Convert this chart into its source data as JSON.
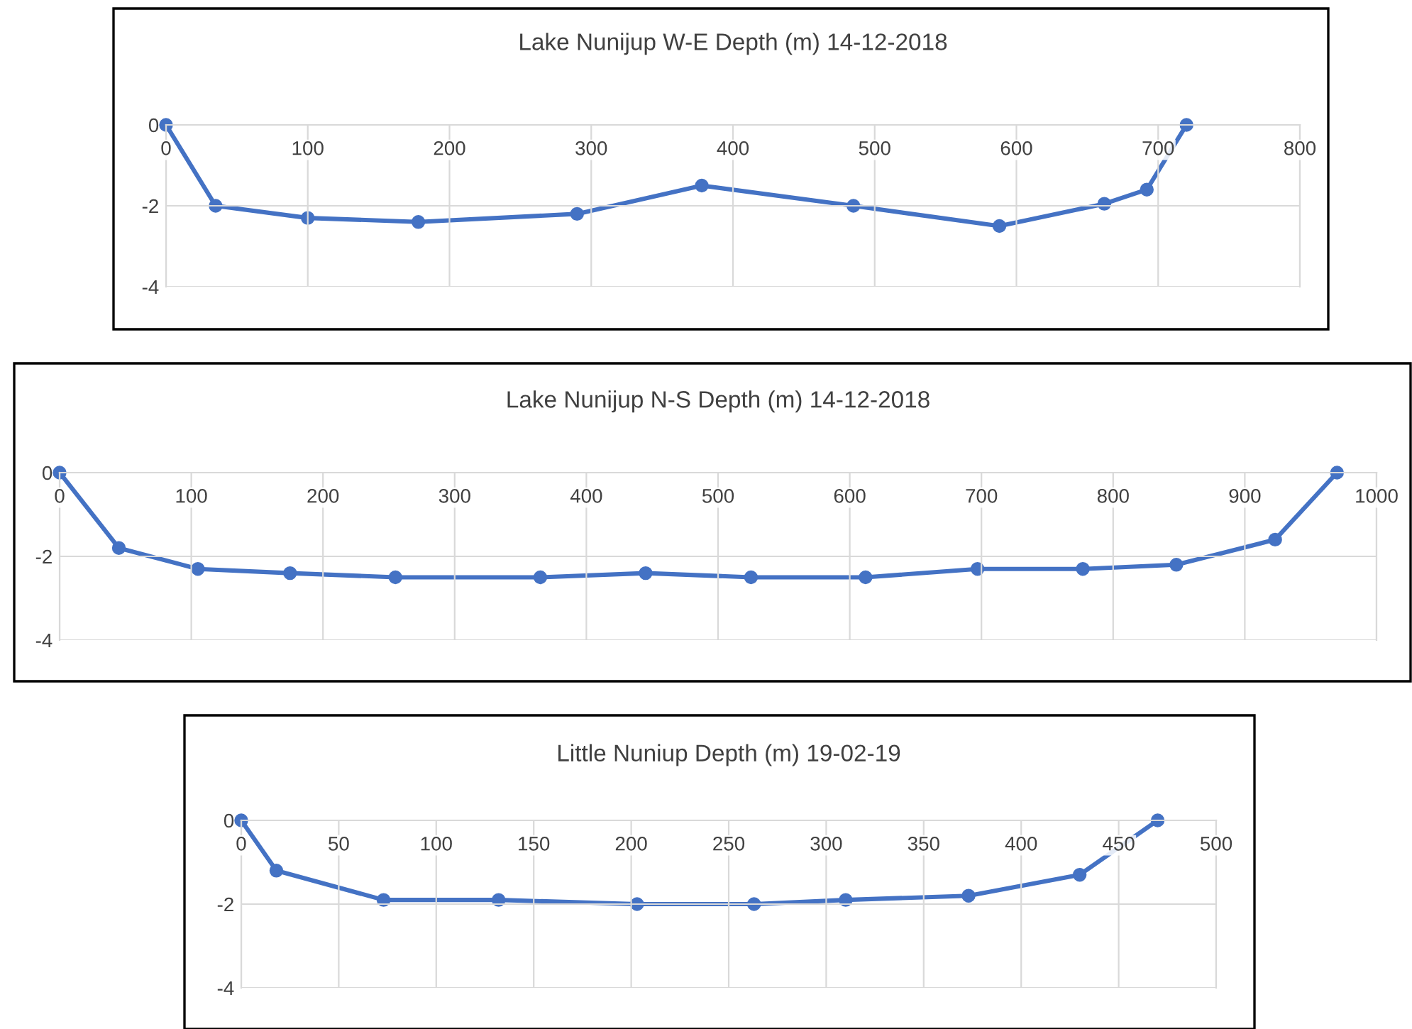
{
  "chart_data": [
    {
      "type": "line",
      "title": "Lake Nunijup W-E Depth (m) 14-12-2018",
      "x": [
        0,
        35,
        100,
        178,
        290,
        378,
        485,
        588,
        662,
        692,
        720
      ],
      "series": [
        {
          "color": "#4472c4",
          "values": [
            0,
            -2.0,
            -2.3,
            -2.4,
            -2.2,
            -1.5,
            -2.0,
            -2.5,
            -1.95,
            -1.6,
            0
          ]
        }
      ],
      "xlim": [
        0,
        800
      ],
      "xticks": [
        0,
        100,
        200,
        300,
        400,
        500,
        600,
        700,
        800
      ],
      "ylim": [
        -4,
        0
      ],
      "yticks": [
        -4,
        -2,
        0
      ],
      "grid": true,
      "marker": "circle",
      "line_style": "solid"
    },
    {
      "type": "line",
      "title": "Lake Nunijup N-S Depth (m) 14-12-2018",
      "x": [
        0,
        45,
        105,
        175,
        255,
        365,
        445,
        525,
        612,
        697,
        777,
        848,
        923,
        970
      ],
      "series": [
        {
          "color": "#4472c4",
          "values": [
            0,
            -1.8,
            -2.3,
            -2.4,
            -2.5,
            -2.5,
            -2.4,
            -2.5,
            -2.5,
            -2.3,
            -2.3,
            -2.2,
            -1.6,
            0
          ]
        }
      ],
      "xlim": [
        0,
        1000
      ],
      "xticks": [
        0,
        100,
        200,
        300,
        400,
        500,
        600,
        700,
        800,
        900,
        1000
      ],
      "ylim": [
        -4,
        0
      ],
      "yticks": [
        -4,
        -2,
        0
      ],
      "grid": true,
      "marker": "circle",
      "line_style": "solid"
    },
    {
      "type": "line",
      "title": "Little Nuniup Depth (m) 19-02-19",
      "x": [
        0,
        18,
        73,
        132,
        203,
        263,
        310,
        373,
        430,
        470
      ],
      "series": [
        {
          "color": "#4472c4",
          "values": [
            0,
            -1.2,
            -1.9,
            -1.9,
            -2.0,
            -2.0,
            -1.9,
            -1.8,
            -1.3,
            0
          ]
        }
      ],
      "xlim": [
        0,
        500
      ],
      "xticks": [
        0,
        50,
        100,
        150,
        200,
        250,
        300,
        350,
        400,
        450,
        500
      ],
      "ylim": [
        -4,
        0
      ],
      "yticks": [
        -4,
        -2,
        0
      ],
      "grid": true,
      "marker": "circle",
      "line_style": "solid"
    }
  ]
}
